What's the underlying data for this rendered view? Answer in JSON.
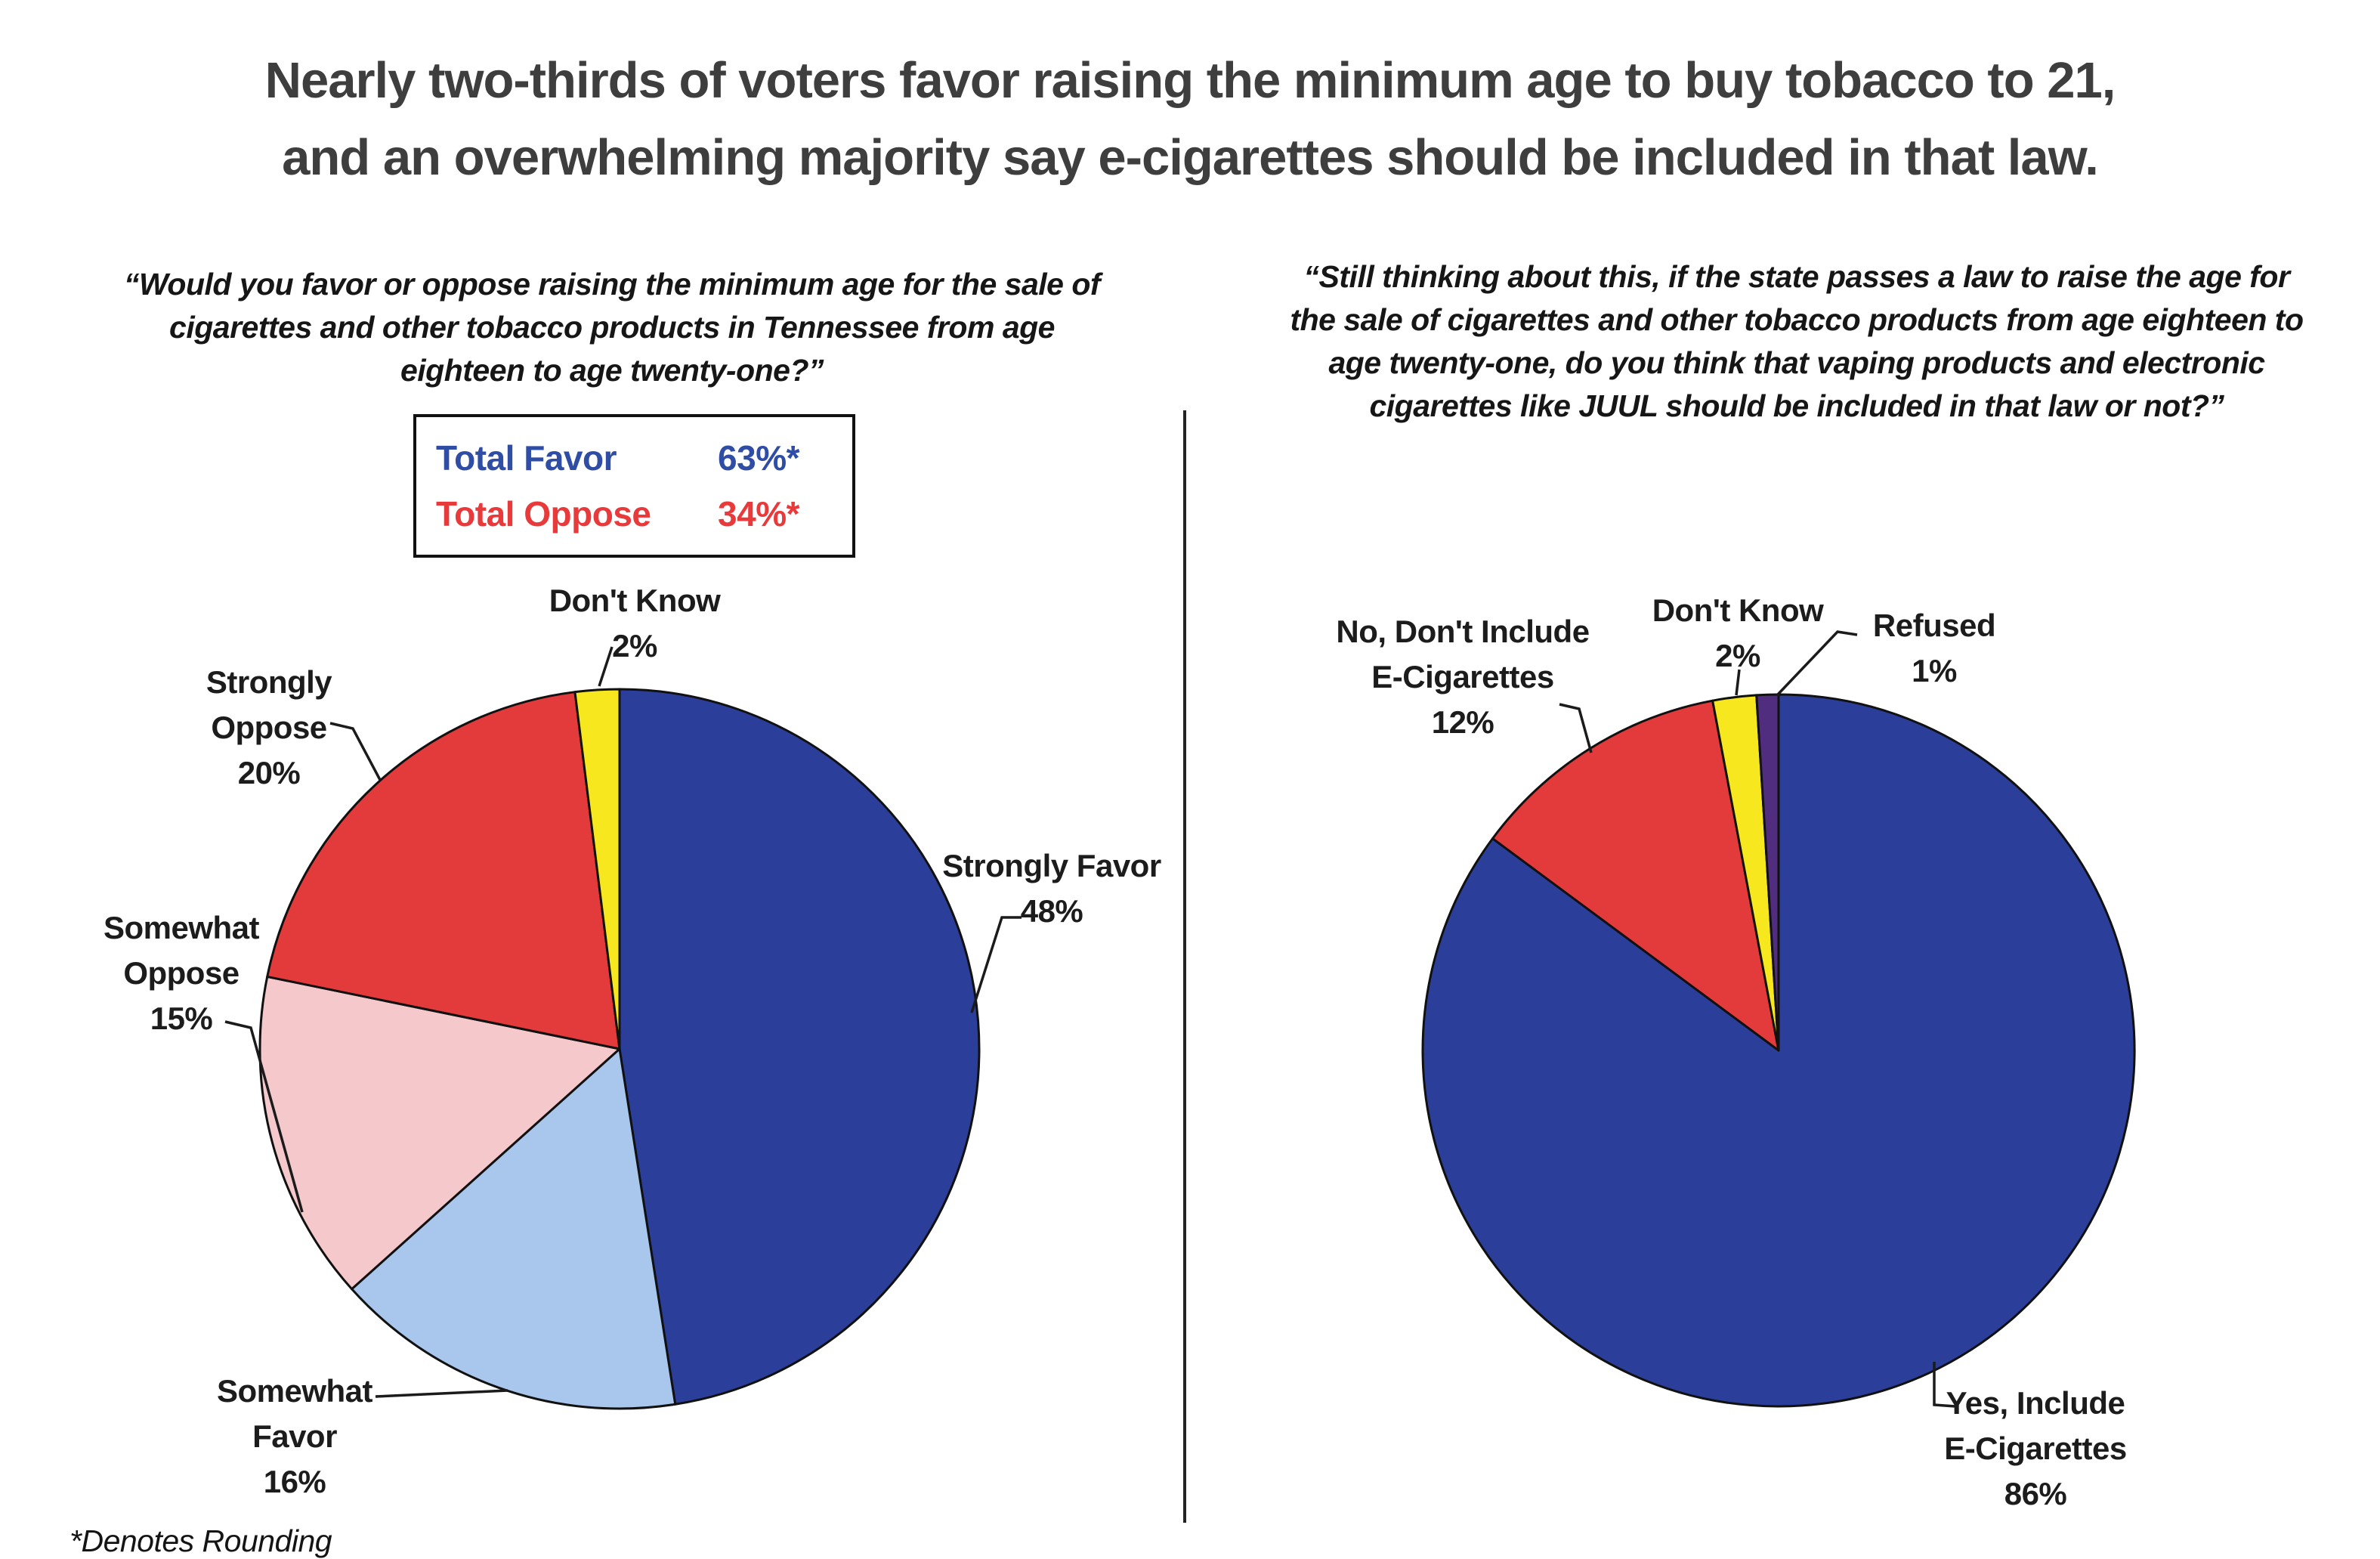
{
  "title": "Nearly two-thirds of voters favor raising the minimum age to buy tobacco to 21,\nand an overwhelming majority say e-cigarettes should be included in that law.",
  "footnote": "*Denotes Rounding",
  "colors": {
    "strong_blue": "#2B3F9A",
    "light_blue": "#A9C6EC",
    "pink": "#F5C8CB",
    "red": "#E33B3B",
    "yellow": "#F7E71F",
    "purple": "#502D7E",
    "favor_text": "#2F4DA4",
    "oppose_text": "#E8393B"
  },
  "left_chart": {
    "question": "“Would you favor or oppose raising the minimum age for the sale of\ncigarettes and other tobacco products in Tennessee from age\neighteen to age twenty-one?”",
    "totals": [
      {
        "label": "Total Favor",
        "value": "63%*",
        "color": "#2F4DA4"
      },
      {
        "label": "Total Oppose",
        "value": "34%*",
        "color": "#E8393B"
      }
    ],
    "slices": [
      {
        "label": "Strongly Favor",
        "value": 48,
        "color": "#2B3F9A"
      },
      {
        "label": "Somewhat Favor",
        "value": 16,
        "color": "#A9C6EC"
      },
      {
        "label": "Somewhat Oppose",
        "value": 15,
        "color": "#F5C8CB"
      },
      {
        "label": "Strongly Oppose",
        "value": 20,
        "color": "#E33B3B"
      },
      {
        "label": "Don't Know",
        "value": 2,
        "color": "#F7E71F"
      }
    ],
    "labels": {
      "dont_know": "Don't Know\n2%",
      "strongly_oppose": "Strongly\nOppose\n20%",
      "somewhat_oppose": "Somewhat\nOppose\n15%",
      "somewhat_favor": "Somewhat\nFavor\n16%",
      "strongly_favor": "Strongly Favor\n48%"
    }
  },
  "right_chart": {
    "question": "“Still thinking about this, if the state passes a law to raise the age for\nthe sale of cigarettes and other tobacco products from age eighteen to\nage twenty-one, do you think that vaping products and electronic\ncigarettes like JUUL should be included in that law or not?”",
    "slices": [
      {
        "label": "Yes, Include E-Cigarettes",
        "value": 86,
        "color": "#2B3F9A"
      },
      {
        "label": "No, Don't Include E-Cigarettes",
        "value": 12,
        "color": "#E33B3B"
      },
      {
        "label": "Don't Know",
        "value": 2,
        "color": "#F7E71F"
      },
      {
        "label": "Refused",
        "value": 1,
        "color": "#502D7E"
      }
    ],
    "labels": {
      "no_dont_include": "No, Don't Include\nE-Cigarettes\n12%",
      "dont_know": "Don't Know\n2%",
      "refused": "Refused\n1%",
      "yes_include": "Yes, Include\nE-Cigarettes\n86%"
    }
  },
  "chart_data": [
    {
      "type": "pie",
      "title": "Would you favor or oppose raising the minimum age for the sale of cigarettes and other tobacco products in Tennessee from age eighteen to age twenty-one?",
      "labels": [
        "Strongly Favor",
        "Somewhat Favor",
        "Somewhat Oppose",
        "Strongly Oppose",
        "Don't Know"
      ],
      "values": [
        48,
        16,
        15,
        20,
        2
      ],
      "colors": [
        "#2B3F9A",
        "#A9C6EC",
        "#F5C8CB",
        "#E33B3B",
        "#F7E71F"
      ],
      "annotations": [
        "Total Favor 63%*",
        "Total Oppose 34%*",
        "*Denotes Rounding"
      ],
      "start_angle_deg": 0,
      "direction": "clockwise",
      "legend_position": "around-pie-callouts"
    },
    {
      "type": "pie",
      "title": "Still thinking about this, if the state passes a law to raise the age for the sale of cigarettes and other tobacco products from age eighteen to age twenty-one, do you think that vaping products and electronic cigarettes like JUUL should be included in that law or not?",
      "labels": [
        "Yes, Include E-Cigarettes",
        "No, Don't Include E-Cigarettes",
        "Don't Know",
        "Refused"
      ],
      "values": [
        86,
        12,
        2,
        1
      ],
      "colors": [
        "#2B3F9A",
        "#E33B3B",
        "#F7E71F",
        "#502D7E"
      ],
      "start_angle_deg": 0,
      "direction": "clockwise",
      "legend_position": "around-pie-callouts"
    }
  ]
}
